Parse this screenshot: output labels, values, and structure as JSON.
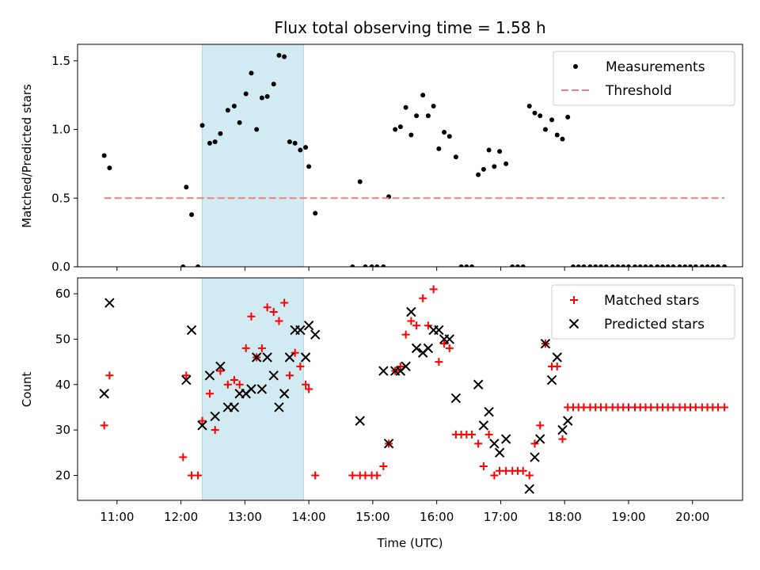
{
  "chart_data": [
    {
      "type": "scatter",
      "title": "Flux total observing time = 1.58 h",
      "xlabel": "",
      "ylabel": "Matched/Predicted stars",
      "xlim": [
        "10:23",
        "20:47"
      ],
      "ylim": [
        0,
        1.62
      ],
      "yticks": [
        0.0,
        0.5,
        1.0,
        1.5
      ],
      "ytick_labels": [
        "0.0",
        "0.5",
        "1.0",
        "1.5"
      ],
      "shaded_span": {
        "x": [
          "12:20",
          "13:55"
        ],
        "color": "#add8e6"
      },
      "legend": {
        "position": "top-right",
        "entries": [
          "Measurements",
          "Threshold"
        ]
      },
      "series": [
        {
          "name": "Measurements",
          "marker": "dot",
          "color": "#000000",
          "points": [
            [
              "10:48",
              0.81
            ],
            [
              "10:53",
              0.72
            ],
            [
              "12:02",
              0.0
            ],
            [
              "12:05",
              0.58
            ],
            [
              "12:10",
              0.38
            ],
            [
              "12:16",
              0.0
            ],
            [
              "12:20",
              1.03
            ],
            [
              "12:27",
              0.9
            ],
            [
              "12:32",
              0.91
            ],
            [
              "12:37",
              0.97
            ],
            [
              "12:44",
              1.14
            ],
            [
              "12:50",
              1.17
            ],
            [
              "12:55",
              1.05
            ],
            [
              "13:01",
              1.26
            ],
            [
              "13:06",
              1.41
            ],
            [
              "13:11",
              1.0
            ],
            [
              "13:16",
              1.23
            ],
            [
              "13:21",
              1.24
            ],
            [
              "13:27",
              1.33
            ],
            [
              "13:32",
              1.54
            ],
            [
              "13:37",
              1.53
            ],
            [
              "13:42",
              0.91
            ],
            [
              "13:47",
              0.9
            ],
            [
              "13:52",
              0.85
            ],
            [
              "13:57",
              0.87
            ],
            [
              "14:00",
              0.73
            ],
            [
              "14:06",
              0.39
            ],
            [
              "14:41",
              0.0
            ],
            [
              "14:48",
              0.62
            ],
            [
              "14:53",
              0.0
            ],
            [
              "14:59",
              0.0
            ],
            [
              "15:04",
              0.0
            ],
            [
              "15:10",
              0.0
            ],
            [
              "15:15",
              0.51
            ],
            [
              "15:21",
              1.0
            ],
            [
              "15:26",
              1.02
            ],
            [
              "15:31",
              1.16
            ],
            [
              "15:36",
              0.96
            ],
            [
              "15:41",
              1.1
            ],
            [
              "15:47",
              1.25
            ],
            [
              "15:52",
              1.1
            ],
            [
              "15:57",
              1.17
            ],
            [
              "16:02",
              0.86
            ],
            [
              "16:07",
              0.98
            ],
            [
              "16:12",
              0.95
            ],
            [
              "16:18",
              0.8
            ],
            [
              "16:23",
              0.0
            ],
            [
              "16:28",
              0.0
            ],
            [
              "16:33",
              0.0
            ],
            [
              "16:39",
              0.67
            ],
            [
              "16:44",
              0.71
            ],
            [
              "16:49",
              0.85
            ],
            [
              "16:54",
              0.73
            ],
            [
              "16:59",
              0.84
            ],
            [
              "17:05",
              0.75
            ],
            [
              "17:11",
              0.0
            ],
            [
              "17:16",
              0.0
            ],
            [
              "17:21",
              0.0
            ],
            [
              "17:27",
              1.17
            ],
            [
              "17:32",
              1.12
            ],
            [
              "17:37",
              1.1
            ],
            [
              "17:42",
              1.0
            ],
            [
              "17:48",
              1.07
            ],
            [
              "17:53",
              0.96
            ],
            [
              "17:58",
              0.93
            ],
            [
              "18:03",
              1.09
            ],
            [
              "18:08",
              0.0
            ],
            [
              "18:13",
              0.0
            ],
            [
              "18:18",
              0.0
            ],
            [
              "18:24",
              0.0
            ],
            [
              "18:29",
              0.0
            ],
            [
              "18:34",
              0.0
            ],
            [
              "18:39",
              0.0
            ],
            [
              "18:45",
              0.0
            ],
            [
              "18:50",
              0.0
            ],
            [
              "18:55",
              0.0
            ],
            [
              "19:00",
              0.0
            ],
            [
              "19:06",
              0.0
            ],
            [
              "19:11",
              0.0
            ],
            [
              "19:16",
              0.0
            ],
            [
              "19:21",
              0.0
            ],
            [
              "19:27",
              0.0
            ],
            [
              "19:32",
              0.0
            ],
            [
              "19:37",
              0.0
            ],
            [
              "19:42",
              0.0
            ],
            [
              "19:48",
              0.0
            ],
            [
              "19:53",
              0.0
            ],
            [
              "19:58",
              0.0
            ],
            [
              "20:03",
              0.0
            ],
            [
              "20:09",
              0.0
            ],
            [
              "20:14",
              0.0
            ],
            [
              "20:19",
              0.0
            ],
            [
              "20:24",
              0.0
            ],
            [
              "20:30",
              0.0
            ]
          ]
        },
        {
          "name": "Threshold",
          "line": "dashed",
          "color": "#f08080",
          "points": [
            [
              "10:48",
              0.5
            ],
            [
              "20:30",
              0.5
            ]
          ]
        }
      ]
    },
    {
      "type": "scatter",
      "title": "",
      "xlabel": "Time (UTC)",
      "ylabel": "Count",
      "xlim": [
        "10:23",
        "20:47"
      ],
      "ylim": [
        14.5,
        63.5
      ],
      "yticks": [
        20,
        30,
        40,
        50,
        60
      ],
      "ytick_labels": [
        "20",
        "30",
        "40",
        "50",
        "60"
      ],
      "xticks": [
        "11:00",
        "12:00",
        "13:00",
        "14:00",
        "15:00",
        "16:00",
        "17:00",
        "18:00",
        "19:00",
        "20:00"
      ],
      "shaded_span": {
        "x": [
          "12:20",
          "13:55"
        ],
        "color": "#add8e6"
      },
      "legend": {
        "position": "top-right",
        "entries": [
          "Matched stars",
          "Predicted stars"
        ]
      },
      "series": [
        {
          "name": "Matched stars",
          "marker": "plus",
          "color": "#ff0000",
          "points": [
            [
              "10:48",
              31
            ],
            [
              "10:53",
              42
            ],
            [
              "12:02",
              24
            ],
            [
              "12:05",
              42
            ],
            [
              "12:10",
              20
            ],
            [
              "12:16",
              20
            ],
            [
              "12:20",
              32
            ],
            [
              "12:27",
              38
            ],
            [
              "12:32",
              30
            ],
            [
              "12:37",
              43
            ],
            [
              "12:44",
              40
            ],
            [
              "12:50",
              41
            ],
            [
              "12:55",
              40
            ],
            [
              "13:01",
              48
            ],
            [
              "13:06",
              55
            ],
            [
              "13:11",
              46
            ],
            [
              "13:16",
              48
            ],
            [
              "13:21",
              57
            ],
            [
              "13:27",
              56
            ],
            [
              "13:32",
              54
            ],
            [
              "13:37",
              58
            ],
            [
              "13:42",
              42
            ],
            [
              "13:47",
              47
            ],
            [
              "13:52",
              44
            ],
            [
              "13:57",
              40
            ],
            [
              "14:00",
              39
            ],
            [
              "14:06",
              20
            ],
            [
              "14:41",
              20
            ],
            [
              "14:48",
              20
            ],
            [
              "14:53",
              20
            ],
            [
              "14:59",
              20
            ],
            [
              "15:04",
              20
            ],
            [
              "15:10",
              22
            ],
            [
              "15:15",
              27
            ],
            [
              "15:21",
              43
            ],
            [
              "15:26",
              44
            ],
            [
              "15:31",
              51
            ],
            [
              "15:36",
              54
            ],
            [
              "15:41",
              53
            ],
            [
              "15:47",
              59
            ],
            [
              "15:52",
              53
            ],
            [
              "15:57",
              61
            ],
            [
              "16:02",
              45
            ],
            [
              "16:07",
              49
            ],
            [
              "16:12",
              48
            ],
            [
              "16:18",
              29
            ],
            [
              "16:23",
              29
            ],
            [
              "16:28",
              29
            ],
            [
              "16:33",
              29
            ],
            [
              "16:39",
              27
            ],
            [
              "16:44",
              22
            ],
            [
              "16:49",
              29
            ],
            [
              "16:54",
              20
            ],
            [
              "16:59",
              21
            ],
            [
              "17:05",
              21
            ],
            [
              "17:11",
              21
            ],
            [
              "17:16",
              21
            ],
            [
              "17:21",
              21
            ],
            [
              "17:27",
              20
            ],
            [
              "17:32",
              27
            ],
            [
              "17:37",
              31
            ],
            [
              "17:42",
              49
            ],
            [
              "17:48",
              44
            ],
            [
              "17:53",
              44
            ],
            [
              "17:58",
              28
            ],
            [
              "18:03",
              35
            ],
            [
              "18:08",
              35
            ],
            [
              "18:13",
              35
            ],
            [
              "18:18",
              35
            ],
            [
              "18:24",
              35
            ],
            [
              "18:29",
              35
            ],
            [
              "18:34",
              35
            ],
            [
              "18:39",
              35
            ],
            [
              "18:45",
              35
            ],
            [
              "18:50",
              35
            ],
            [
              "18:55",
              35
            ],
            [
              "19:00",
              35
            ],
            [
              "19:06",
              35
            ],
            [
              "19:11",
              35
            ],
            [
              "19:16",
              35
            ],
            [
              "19:21",
              35
            ],
            [
              "19:27",
              35
            ],
            [
              "19:32",
              35
            ],
            [
              "19:37",
              35
            ],
            [
              "19:42",
              35
            ],
            [
              "19:48",
              35
            ],
            [
              "19:53",
              35
            ],
            [
              "19:58",
              35
            ],
            [
              "20:03",
              35
            ],
            [
              "20:09",
              35
            ],
            [
              "20:14",
              35
            ],
            [
              "20:19",
              35
            ],
            [
              "20:24",
              35
            ],
            [
              "20:30",
              35
            ]
          ]
        },
        {
          "name": "Predicted stars",
          "marker": "x",
          "color": "#000000",
          "points": [
            [
              "10:48",
              38
            ],
            [
              "10:53",
              58
            ],
            [
              "12:05",
              41
            ],
            [
              "12:10",
              52
            ],
            [
              "12:20",
              31
            ],
            [
              "12:27",
              42
            ],
            [
              "12:32",
              33
            ],
            [
              "12:37",
              44
            ],
            [
              "12:44",
              35
            ],
            [
              "12:50",
              35
            ],
            [
              "12:55",
              38
            ],
            [
              "13:01",
              38
            ],
            [
              "13:06",
              39
            ],
            [
              "13:11",
              46
            ],
            [
              "13:16",
              39
            ],
            [
              "13:21",
              46
            ],
            [
              "13:27",
              42
            ],
            [
              "13:32",
              35
            ],
            [
              "13:37",
              38
            ],
            [
              "13:42",
              46
            ],
            [
              "13:47",
              52
            ],
            [
              "13:52",
              52
            ],
            [
              "13:57",
              46
            ],
            [
              "14:00",
              53
            ],
            [
              "14:06",
              51
            ],
            [
              "14:48",
              32
            ],
            [
              "15:10",
              43
            ],
            [
              "15:15",
              27
            ],
            [
              "15:21",
              43
            ],
            [
              "15:26",
              43
            ],
            [
              "15:31",
              44
            ],
            [
              "15:36",
              56
            ],
            [
              "15:41",
              48
            ],
            [
              "15:47",
              47
            ],
            [
              "15:52",
              48
            ],
            [
              "15:57",
              52
            ],
            [
              "16:02",
              52
            ],
            [
              "16:07",
              50
            ],
            [
              "16:12",
              50
            ],
            [
              "16:18",
              37
            ],
            [
              "16:39",
              40
            ],
            [
              "16:44",
              31
            ],
            [
              "16:49",
              34
            ],
            [
              "16:54",
              27
            ],
            [
              "16:59",
              25
            ],
            [
              "17:05",
              28
            ],
            [
              "17:27",
              17
            ],
            [
              "17:32",
              24
            ],
            [
              "17:37",
              28
            ],
            [
              "17:42",
              49
            ],
            [
              "17:48",
              41
            ],
            [
              "17:53",
              46
            ],
            [
              "17:58",
              30
            ],
            [
              "18:03",
              32
            ]
          ]
        }
      ]
    }
  ]
}
